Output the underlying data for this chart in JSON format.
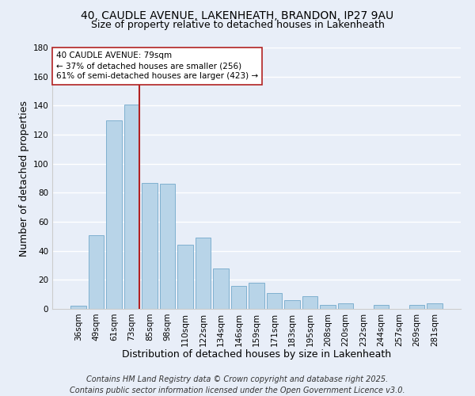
{
  "title": "40, CAUDLE AVENUE, LAKENHEATH, BRANDON, IP27 9AU",
  "subtitle": "Size of property relative to detached houses in Lakenheath",
  "xlabel": "Distribution of detached houses by size in Lakenheath",
  "ylabel": "Number of detached properties",
  "categories": [
    "36sqm",
    "49sqm",
    "61sqm",
    "73sqm",
    "85sqm",
    "98sqm",
    "110sqm",
    "122sqm",
    "134sqm",
    "146sqm",
    "159sqm",
    "171sqm",
    "183sqm",
    "195sqm",
    "208sqm",
    "220sqm",
    "232sqm",
    "244sqm",
    "257sqm",
    "269sqm",
    "281sqm"
  ],
  "values": [
    2,
    51,
    130,
    141,
    87,
    86,
    44,
    49,
    28,
    16,
    18,
    11,
    6,
    9,
    3,
    4,
    0,
    3,
    0,
    3,
    4
  ],
  "bar_color": "#b8d4e8",
  "bar_edge_color": "#7fb0d0",
  "marker_line_index": 3,
  "marker_line_color": "#b22222",
  "ylim": [
    0,
    180
  ],
  "yticks": [
    0,
    20,
    40,
    60,
    80,
    100,
    120,
    140,
    160,
    180
  ],
  "annotation_title": "40 CAUDLE AVENUE: 79sqm",
  "annotation_line1": "← 37% of detached houses are smaller (256)",
  "annotation_line2": "61% of semi-detached houses are larger (423) →",
  "footer1": "Contains HM Land Registry data © Crown copyright and database right 2025.",
  "footer2": "Contains public sector information licensed under the Open Government Licence v3.0.",
  "background_color": "#e8eef8",
  "grid_color": "#ffffff",
  "title_fontsize": 10,
  "subtitle_fontsize": 9,
  "axis_label_fontsize": 9,
  "tick_fontsize": 7.5,
  "annotation_fontsize": 7.5,
  "footer_fontsize": 7
}
